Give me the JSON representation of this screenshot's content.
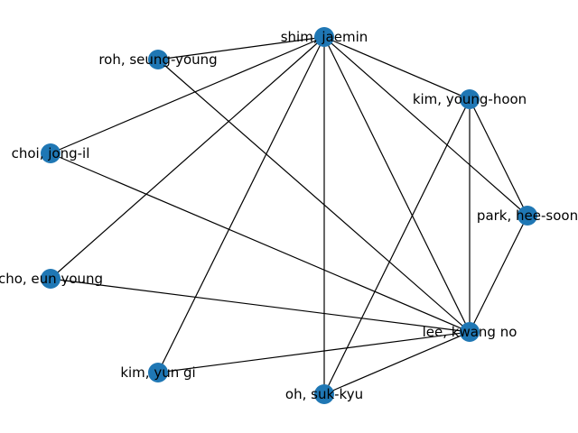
{
  "graph": {
    "node_color": "#1f77b4",
    "edge_color": "#000000",
    "nodes": [
      {
        "id": "shim",
        "label": "shim, jaemin"
      },
      {
        "id": "roh",
        "label": "roh, seung-young"
      },
      {
        "id": "kimyh",
        "label": "kim, young-hoon"
      },
      {
        "id": "choi",
        "label": "choi, jong-il"
      },
      {
        "id": "park",
        "label": "park, hee-soon"
      },
      {
        "id": "cho",
        "label": "cho, eun young"
      },
      {
        "id": "lee",
        "label": "lee, kwang no"
      },
      {
        "id": "kimyg",
        "label": "kim, yun gi"
      },
      {
        "id": "oh",
        "label": "oh, suk-kyu"
      }
    ],
    "edges": [
      [
        "shim",
        "roh"
      ],
      [
        "shim",
        "choi"
      ],
      [
        "shim",
        "cho"
      ],
      [
        "shim",
        "kimyg"
      ],
      [
        "shim",
        "oh"
      ],
      [
        "shim",
        "lee"
      ],
      [
        "shim",
        "kimyh"
      ],
      [
        "shim",
        "park"
      ],
      [
        "roh",
        "lee"
      ],
      [
        "choi",
        "lee"
      ],
      [
        "cho",
        "lee"
      ],
      [
        "kimyg",
        "lee"
      ],
      [
        "oh",
        "lee"
      ],
      [
        "kimyh",
        "lee"
      ],
      [
        "kimyh",
        "park"
      ],
      [
        "kimyh",
        "oh"
      ],
      [
        "park",
        "lee"
      ]
    ]
  }
}
